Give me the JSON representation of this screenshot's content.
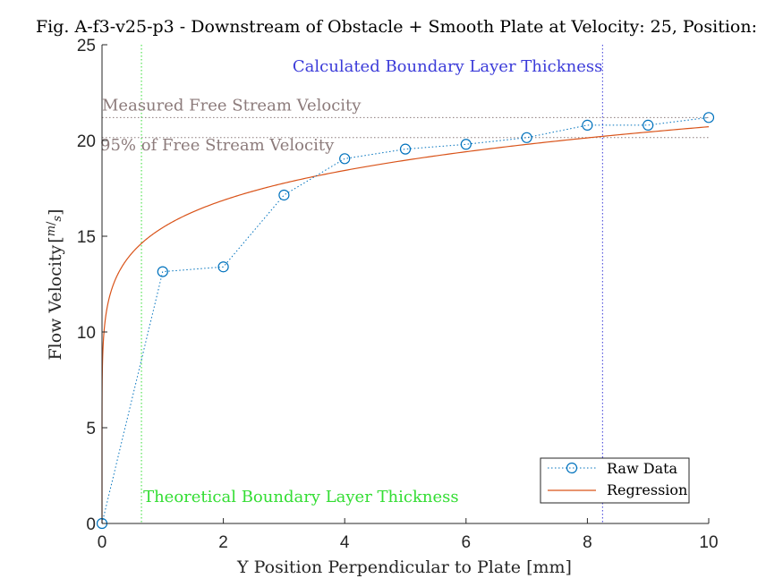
{
  "chart_data": {
    "type": "scatter",
    "title": "Fig. A-f3-v25-p3 - Downstream of Obstacle + Smooth Plate at Velocity: 25, Position:",
    "xlabel": "Y Position Perpendicular to Plate [mm]",
    "ylabel_main": "Flow Velocity",
    "ylabel_unit_num": "m",
    "ylabel_unit_den": "s",
    "xlim": [
      0,
      10
    ],
    "ylim": [
      0,
      25
    ],
    "xticks": [
      0,
      2,
      4,
      6,
      8,
      10
    ],
    "yticks": [
      0,
      5,
      10,
      15,
      20,
      25
    ],
    "series": [
      {
        "name": "Raw Data",
        "style": "dotted-line-circle-markers",
        "color": "#0072BD",
        "x": [
          0,
          1,
          2,
          3,
          4,
          5,
          6,
          7,
          8,
          9,
          10
        ],
        "y": [
          0,
          13.15,
          13.4,
          17.15,
          19.05,
          19.55,
          19.8,
          20.15,
          20.8,
          20.8,
          21.2
        ]
      },
      {
        "name": "Regression",
        "style": "solid-line",
        "color": "#D95319",
        "model": "power-law",
        "a": 15.45,
        "b": 0.1274,
        "x_range": [
          0,
          10
        ]
      }
    ],
    "reference_lines": [
      {
        "orientation": "horizontal",
        "value": 21.2,
        "label": "Measured Free Stream Velocity",
        "color": "#8c7b7b"
      },
      {
        "orientation": "horizontal",
        "value": 20.15,
        "label": "95% of Free Stream Velocity",
        "color": "#8c7b7b"
      },
      {
        "orientation": "vertical",
        "value": 8.25,
        "label": "Calculated Boundary Layer Thickness",
        "color": "#3b3bd9"
      },
      {
        "orientation": "vertical",
        "value": 0.65,
        "label": "Theoretical Boundary Layer Thickness",
        "color": "#33dd33"
      }
    ],
    "legend": {
      "position": "bottom-right",
      "entries": [
        "Raw Data",
        "Regression"
      ]
    },
    "grid": false
  }
}
